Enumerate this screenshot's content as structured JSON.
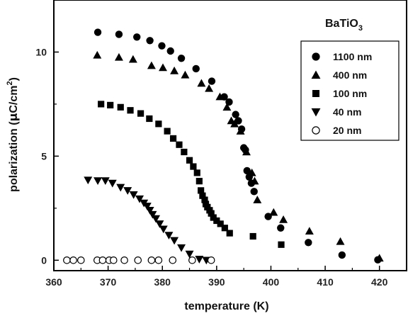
{
  "chart_data": {
    "type": "scatter",
    "title": "",
    "annotation": {
      "main": "BaTiO",
      "sub": "3"
    },
    "xlabel": "temperature (K)",
    "ylabel": {
      "prefix": "polarization (",
      "mu": "μ",
      "unit": "C/cm",
      "sup": "2",
      "suffix": ")"
    },
    "xlim": [
      360,
      425
    ],
    "ylim": [
      -0.5,
      12.5
    ],
    "xticks": [
      360,
      370,
      380,
      390,
      400,
      410,
      420
    ],
    "yticks": [
      0,
      5,
      10
    ],
    "grid": false,
    "legend_position": "upper-right",
    "series": [
      {
        "name": "1100 nm",
        "marker": "circle-filled",
        "color": "#000000",
        "x": [
          368.1,
          372.0,
          375.3,
          377.7,
          379.9,
          381.5,
          383.5,
          386.2,
          389.1,
          391.4,
          392.3,
          393.5,
          394.0,
          394.6,
          395.0,
          395.3,
          395.6,
          396.0,
          396.4,
          396.9,
          399.5,
          401.8,
          406.9,
          413.1,
          419.7
        ],
        "y": [
          10.95,
          10.85,
          10.72,
          10.55,
          10.3,
          10.05,
          9.7,
          9.2,
          8.6,
          7.85,
          7.6,
          7.0,
          6.7,
          6.3,
          5.4,
          5.3,
          4.3,
          4.0,
          3.7,
          3.3,
          2.1,
          1.55,
          0.85,
          0.25,
          0.02
        ]
      },
      {
        "name": "400 nm",
        "marker": "triangle-up",
        "color": "#000000",
        "x": [
          368.0,
          372.0,
          374.6,
          378.0,
          380.1,
          382.2,
          384.2,
          387.2,
          388.6,
          390.6,
          391.9,
          392.7,
          393.3,
          394.4,
          395.5,
          396.5,
          397.0,
          397.5,
          400.5,
          402.3,
          407.1,
          412.8,
          420.0
        ],
        "y": [
          9.85,
          9.75,
          9.65,
          9.35,
          9.25,
          9.1,
          8.9,
          8.5,
          8.25,
          7.85,
          7.35,
          6.7,
          6.55,
          6.2,
          5.2,
          4.2,
          3.8,
          2.9,
          2.3,
          1.95,
          1.4,
          0.9,
          0.1
        ]
      },
      {
        "name": "100 nm",
        "marker": "square-filled",
        "color": "#000000",
        "x": [
          368.7,
          370.4,
          372.3,
          374.1,
          376.0,
          377.6,
          379.3,
          380.9,
          382.0,
          383.1,
          384.0,
          385.0,
          385.7,
          386.4,
          386.8,
          387.1,
          387.4,
          387.8,
          388.0,
          388.3,
          388.7,
          389.0,
          389.4,
          390.0,
          390.7,
          391.5,
          392.4,
          396.7,
          401.9
        ],
        "y": [
          7.5,
          7.45,
          7.35,
          7.2,
          7.05,
          6.8,
          6.55,
          6.2,
          5.85,
          5.55,
          5.2,
          4.8,
          4.5,
          4.2,
          3.8,
          3.35,
          3.1,
          2.9,
          2.7,
          2.55,
          2.4,
          2.25,
          2.05,
          1.9,
          1.75,
          1.55,
          1.3,
          1.15,
          0.75
        ]
      },
      {
        "name": "40 nm",
        "marker": "triangle-down",
        "color": "#000000",
        "x": [
          366.3,
          368.1,
          369.5,
          370.8,
          372.3,
          373.6,
          374.7,
          375.8,
          376.6,
          377.2,
          377.7,
          378.2,
          378.8,
          379.5,
          380.2,
          381.2,
          382.2,
          383.5,
          385.0,
          386.8,
          388.1
        ],
        "y": [
          3.85,
          3.82,
          3.82,
          3.7,
          3.5,
          3.35,
          3.15,
          2.95,
          2.75,
          2.6,
          2.4,
          2.2,
          2.0,
          1.75,
          1.5,
          1.2,
          0.95,
          0.6,
          0.3,
          0.05,
          0.0
        ]
      },
      {
        "name": "20 nm",
        "marker": "circle-open",
        "color": "#000000",
        "x": [
          362.4,
          363.6,
          365.0,
          368.0,
          369.0,
          370.2,
          371.0,
          373.0,
          375.5,
          378.0,
          379.3,
          381.9,
          385.5,
          389.0
        ],
        "y": [
          0,
          0,
          0,
          0,
          0,
          0,
          0,
          0,
          0,
          0,
          0,
          0,
          0,
          0
        ]
      }
    ]
  }
}
